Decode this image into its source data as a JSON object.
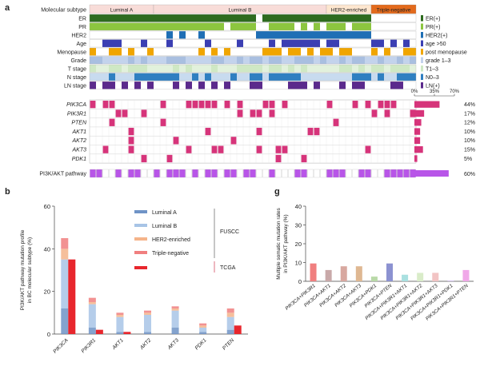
{
  "panel_labels": {
    "a": "a",
    "b": "b",
    "g": "g"
  },
  "colors": {
    "magenta": "#d6347a",
    "er_green": "#2e6b1f",
    "pr_green": "#8cc63f",
    "her2_blue": "#1f6fb5",
    "age_blue": "#3b3fb3",
    "meno_orange": "#f0a500",
    "grade_light": "#c3d3ec",
    "tstage_light": "#cfe8c4",
    "nstage_blue": "#2f7fc1",
    "ln_purple": "#5b2a8c",
    "pathway_purple": "#b855e8",
    "luminal_a": "#6f93c6",
    "luminal_b": "#a8c4e6",
    "her2_enriched": "#f5b48a",
    "triple_negative": "#f07f7f",
    "tcga": "#e8262d",
    "tcga_text": "#c8102e"
  },
  "chart_data": [
    {
      "type": "heatmap",
      "subtypes": [
        {
          "name": "Luminal A",
          "n": 10,
          "color": "#f8dcd8"
        },
        {
          "name": "Luminal B",
          "n": 27,
          "color": "#f8dcd8"
        },
        {
          "name": "HER2-enriched",
          "n": 7,
          "color": "#fde6cf"
        },
        {
          "name": "Triple-negative",
          "n": 7,
          "color": "#e36a1c"
        }
      ],
      "row_labels": {
        "subtype": "Molecular subtype",
        "clinical": [
          "ER",
          "PR",
          "HER2",
          "Age",
          "Menopause",
          "Grade",
          "T stage",
          "N stage",
          "LN stage"
        ],
        "genes": [
          "PIK3CA",
          "PIK3R1",
          "PTEN",
          "AKT1",
          "AKT2",
          "AKT3",
          "PDK1"
        ],
        "pathway": "PI3K/AKT pathway"
      },
      "legend": [
        "ER(+)",
        "PR(+)",
        "HER2(+)",
        "age >50",
        "post menopause",
        "grade 1–3",
        "T1–3",
        "N0–3",
        "LN(+)"
      ],
      "gene_frequency_pct": [
        44,
        17,
        12,
        10,
        10,
        15,
        5
      ],
      "pathway_frequency_pct": 60,
      "frequency_axis": {
        "ticks": [
          "0%",
          "35%",
          "70%"
        ],
        "max": 70
      }
    },
    {
      "type": "bar",
      "categories": [
        "PIK3CA",
        "PIK3R1",
        "AKT1",
        "AKT2",
        "AKT3",
        "PDK1",
        "PTEN"
      ],
      "ylabel": "PI3K/AKT pathway mutation profile\nin BC molecular subtype (%)",
      "ylim": [
        0,
        60
      ],
      "yticks": [
        0,
        20,
        40,
        60
      ],
      "stacked_series": [
        {
          "name": "Luminal A",
          "values": [
            12,
            3,
            1,
            1,
            3,
            1,
            2
          ]
        },
        {
          "name": "Luminal B",
          "values": [
            23,
            11,
            7,
            8,
            8,
            2,
            6
          ]
        },
        {
          "name": "HER2-enriched",
          "values": [
            5,
            1,
            1,
            1,
            1,
            1,
            2
          ]
        },
        {
          "name": "Triple-negative",
          "values": [
            5,
            2,
            1,
            1,
            1,
            1,
            2
          ]
        }
      ],
      "tcga_series": {
        "name": "TCGA",
        "values": [
          35,
          2,
          1,
          0,
          0,
          0,
          4
        ]
      },
      "legend_groups": {
        "fuscc": "FUSCC",
        "tcga": "TCGA"
      }
    },
    {
      "type": "bar",
      "categories": [
        "PIK3CA+PIK3R1",
        "PIK3CA+AKT1",
        "PIK3CA+AKT2",
        "PIK3CA+AKT3",
        "PIK3CA+PDK1",
        "PIK3CA+PTEN",
        "PIK3CA+PIK3R1+AKT1",
        "PIK3CA+PIK3R1+AKT2",
        "PIK3CA+PIK3R1+AKT3",
        "PIK3CA+PIK3R1+PDK1",
        "PIK3CA+PIK3R1+PTEN"
      ],
      "values": [
        9.5,
        6,
        8,
        8,
        2.5,
        9.5,
        3.5,
        4.5,
        4.5,
        0.5,
        6
      ],
      "ylabel": "Multiple somatic mutation rates\nin PI3K/AKT pathway (%)",
      "ylim": [
        0,
        40
      ],
      "yticks": [
        0,
        10,
        20,
        30,
        40
      ]
    }
  ]
}
